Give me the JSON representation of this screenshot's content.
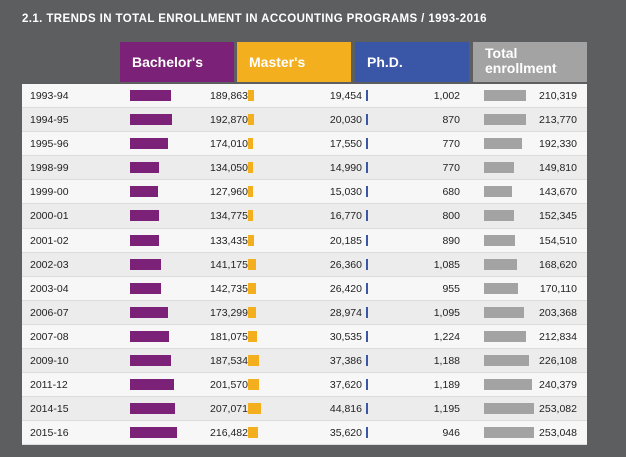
{
  "title": "2.1. TRENDS IN TOTAL ENROLLMENT IN ACCOUNTING PROGRAMS / 1993-2016",
  "colors": {
    "bachelors": "#7b2177",
    "masters": "#f3af1d",
    "phd": "#3a56a7",
    "total": "#a3a3a3"
  },
  "chart_data": {
    "type": "table",
    "title": "2.1. TRENDS IN TOTAL ENROLLMENT IN ACCOUNTING PROGRAMS / 1993-2016",
    "columns": [
      "Bachelor's",
      "Master's",
      "Ph.D.",
      "Total enrollment"
    ],
    "categories": [
      "1993-94",
      "1994-95",
      "1995-96",
      "1998-99",
      "1999-00",
      "2000-01",
      "2001-02",
      "2002-03",
      "2003-04",
      "2006-07",
      "2007-08",
      "2009-10",
      "2011-12",
      "2014-15",
      "2015-16"
    ],
    "series": [
      {
        "name": "Bachelor's",
        "values": [
          189863,
          192870,
          174010,
          134050,
          127960,
          134775,
          133435,
          141175,
          142735,
          173299,
          181075,
          187534,
          201570,
          207071,
          216482
        ],
        "labels": [
          "189,863",
          "192,870",
          "174,010",
          "134,050",
          "127,960",
          "134,775",
          "133,435",
          "141,175",
          "142,735",
          "173,299",
          "181,075",
          "187,534",
          "201,570",
          "207,071",
          "216,482"
        ]
      },
      {
        "name": "Master's",
        "values": [
          19454,
          20030,
          17550,
          14990,
          15030,
          16770,
          20185,
          26360,
          26420,
          28974,
          30535,
          37386,
          37620,
          44816,
          35620
        ],
        "labels": [
          "19,454",
          "20,030",
          "17,550",
          "14,990",
          "15,030",
          "16,770",
          "20,185",
          "26,360",
          "26,420",
          "28,974",
          "30,535",
          "37,386",
          "37,620",
          "44,816",
          "35,620"
        ]
      },
      {
        "name": "Ph.D.",
        "values": [
          1002,
          870,
          770,
          770,
          680,
          800,
          890,
          1085,
          955,
          1095,
          1224,
          1188,
          1189,
          1195,
          946
        ],
        "labels": [
          "1,002",
          "870",
          "770",
          "770",
          "680",
          "800",
          "890",
          "1,085",
          "955",
          "1,095",
          "1,224",
          "1,188",
          "1,189",
          "1,195",
          "946"
        ]
      },
      {
        "name": "Total enrollment",
        "values": [
          210319,
          213770,
          192330,
          149810,
          143670,
          152345,
          154510,
          168620,
          170110,
          203368,
          212834,
          226108,
          240379,
          253082,
          253048
        ],
        "labels": [
          "210,319",
          "213,770",
          "192,330",
          "149,810",
          "143,670",
          "152,345",
          "154,510",
          "168,620",
          "170,110",
          "203,368",
          "212,834",
          "226,108",
          "240,379",
          "253,082",
          "253,048"
        ]
      }
    ]
  }
}
